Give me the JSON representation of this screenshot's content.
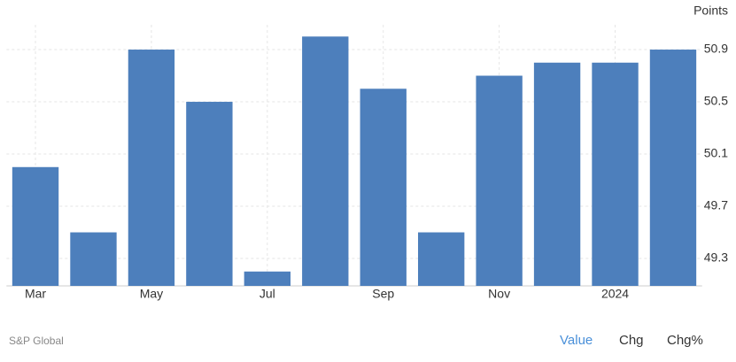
{
  "chart_data": {
    "type": "bar",
    "y_label": "Points",
    "categories": [
      "Mar",
      null,
      "May",
      null,
      "Jul",
      null,
      "Sep",
      null,
      "Nov",
      null,
      "2024",
      null
    ],
    "values": [
      50.0,
      49.5,
      50.9,
      50.5,
      49.2,
      51.0,
      50.6,
      49.5,
      50.7,
      50.8,
      50.8,
      50.9
    ],
    "color": "#4d7fbc",
    "ylim": [
      49.09,
      51.09
    ],
    "yticks": [
      49.3,
      49.7,
      50.1,
      50.5,
      50.9
    ],
    "grid": true
  },
  "source": "S&P Global",
  "controls": [
    "Value",
    "Chg",
    "Chg%"
  ]
}
